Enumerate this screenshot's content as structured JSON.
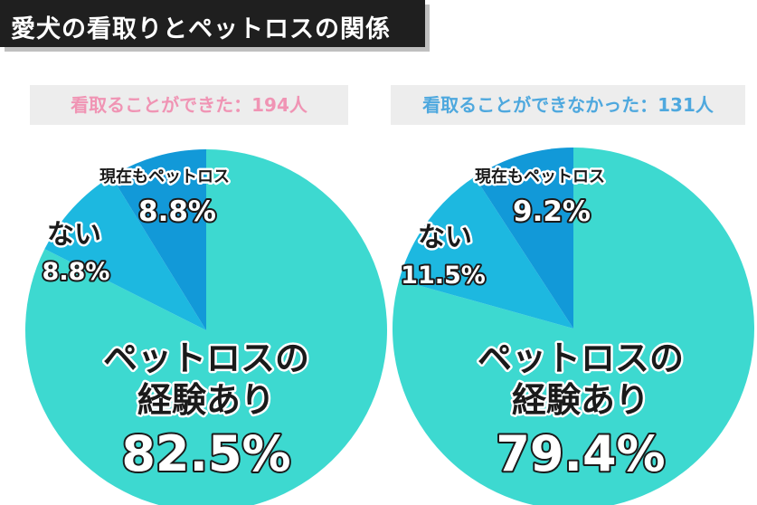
{
  "title": "愛犬の看取りとペットロスの関係",
  "colors": {
    "title_bg": "#1f1f1f",
    "badge_bg": "#ededed",
    "badge_left_text": "#f094b4",
    "badge_right_text": "#4ea8de",
    "slice_main": "#3dd9d0",
    "slice_mid": "#1db8e0",
    "slice_dark": "#1299d8"
  },
  "chart_data": [
    {
      "type": "pie",
      "title": "看取ることができた：194人",
      "categories": [
        "ペットロスの経験あり",
        "ない",
        "現在もペットロス"
      ],
      "values": [
        82.5,
        8.8,
        8.8
      ],
      "value_labels": [
        "82.5%",
        "8.8%",
        "8.8%"
      ],
      "label_lines": [
        [
          "ペットロスの",
          "経験あり"
        ],
        [
          "ない"
        ],
        [
          "現在もペットロス"
        ]
      ],
      "start": "12 o'clock",
      "direction": "clockwise"
    },
    {
      "type": "pie",
      "title": "看取ることができなかった：131人",
      "categories": [
        "ペットロスの経験あり",
        "ない",
        "現在もペットロス"
      ],
      "values": [
        79.4,
        11.5,
        9.2
      ],
      "value_labels": [
        "79.4%",
        "11.5%",
        "9.2%"
      ],
      "label_lines": [
        [
          "ペットロスの",
          "経験あり"
        ],
        [
          "ない"
        ],
        [
          "現在もペットロス"
        ]
      ],
      "start": "12 o'clock",
      "direction": "clockwise"
    }
  ]
}
